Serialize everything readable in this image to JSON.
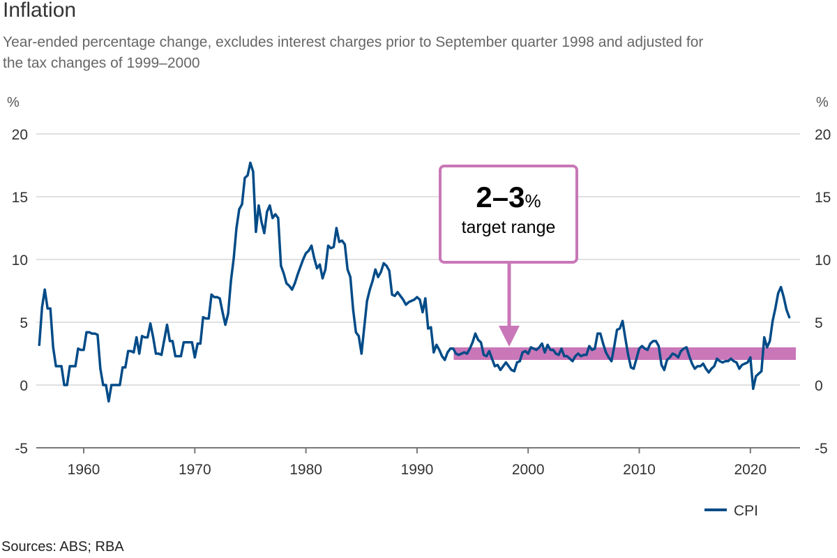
{
  "header": {
    "title": "Inflation",
    "subtitle": "Year-ended percentage change, excludes interest charges prior to September quarter 1998 and adjusted for the tax changes of 1999–2000"
  },
  "axis_units": {
    "left": "%",
    "right": "%"
  },
  "annotation": {
    "value": "2–3",
    "value_unit": "%",
    "label": "target range",
    "color": "#c977b8"
  },
  "sources": "Sources: ABS; RBA",
  "chart_data": {
    "type": "line",
    "title": "Inflation",
    "subtitle": "Year-ended percentage change, excludes interest charges prior to September quarter 1998 and adjusted for the tax changes of 1999–2000",
    "xlabel": "",
    "ylabel": "%",
    "xlim": [
      1955.6,
      2024.4
    ],
    "ylim": [
      -5,
      20
    ],
    "yticks": [
      -5,
      0,
      5,
      10,
      15,
      20
    ],
    "xticks": [
      1960,
      1970,
      1980,
      1990,
      2000,
      2010,
      2020
    ],
    "ytick_labels": [
      "-5",
      "0",
      "5",
      "10",
      "15",
      "20"
    ],
    "xtick_labels": [
      "1960",
      "1970",
      "1980",
      "1990",
      "2000",
      "2010",
      "2020"
    ],
    "grid": true,
    "legend": {
      "position": "bottom-right",
      "entries": [
        "CPI"
      ]
    },
    "target_band": {
      "from_year": 1993.3,
      "to_year": 2024.4,
      "low": 2,
      "high": 3,
      "label": "2–3% target range",
      "color": "#c977b8"
    },
    "series": [
      {
        "name": "CPI",
        "color": "#004b87",
        "points": [
          [
            1956.0,
            3.2
          ],
          [
            1956.25,
            6.2
          ],
          [
            1956.5,
            7.6
          ],
          [
            1956.75,
            6.1
          ],
          [
            1957.0,
            6.1
          ],
          [
            1957.25,
            3.0
          ],
          [
            1957.5,
            1.5
          ],
          [
            1957.75,
            1.5
          ],
          [
            1958.0,
            1.5
          ],
          [
            1958.25,
            0.0
          ],
          [
            1958.5,
            0.0
          ],
          [
            1958.75,
            1.5
          ],
          [
            1959.0,
            1.5
          ],
          [
            1959.25,
            1.5
          ],
          [
            1959.5,
            2.9
          ],
          [
            1959.75,
            2.8
          ],
          [
            1960.0,
            2.8
          ],
          [
            1960.25,
            4.2
          ],
          [
            1960.5,
            4.2
          ],
          [
            1960.75,
            4.1
          ],
          [
            1961.0,
            4.1
          ],
          [
            1961.25,
            4.0
          ],
          [
            1961.5,
            1.3
          ],
          [
            1961.75,
            0.0
          ],
          [
            1962.0,
            0.0
          ],
          [
            1962.25,
            -1.3
          ],
          [
            1962.5,
            0.0
          ],
          [
            1962.75,
            0.0
          ],
          [
            1963.0,
            0.0
          ],
          [
            1963.25,
            0.0
          ],
          [
            1963.5,
            1.4
          ],
          [
            1963.75,
            1.4
          ],
          [
            1964.0,
            2.7
          ],
          [
            1964.25,
            2.7
          ],
          [
            1964.5,
            2.6
          ],
          [
            1964.75,
            3.8
          ],
          [
            1965.0,
            2.5
          ],
          [
            1965.25,
            3.9
          ],
          [
            1965.5,
            3.8
          ],
          [
            1965.75,
            3.8
          ],
          [
            1966.0,
            4.9
          ],
          [
            1966.25,
            3.8
          ],
          [
            1966.5,
            2.5
          ],
          [
            1966.75,
            2.5
          ],
          [
            1967.0,
            2.4
          ],
          [
            1967.25,
            3.6
          ],
          [
            1967.5,
            4.8
          ],
          [
            1967.75,
            3.5
          ],
          [
            1968.0,
            3.5
          ],
          [
            1968.25,
            2.3
          ],
          [
            1968.5,
            2.3
          ],
          [
            1968.75,
            2.3
          ],
          [
            1969.0,
            3.4
          ],
          [
            1969.25,
            3.4
          ],
          [
            1969.5,
            3.4
          ],
          [
            1969.75,
            3.4
          ],
          [
            1970.0,
            2.2
          ],
          [
            1970.25,
            3.3
          ],
          [
            1970.5,
            3.3
          ],
          [
            1970.75,
            5.4
          ],
          [
            1971.0,
            5.3
          ],
          [
            1971.25,
            5.3
          ],
          [
            1971.5,
            7.2
          ],
          [
            1971.75,
            7.0
          ],
          [
            1972.0,
            7.0
          ],
          [
            1972.25,
            6.9
          ],
          [
            1972.5,
            5.8
          ],
          [
            1972.75,
            4.8
          ],
          [
            1973.0,
            5.7
          ],
          [
            1973.25,
            8.3
          ],
          [
            1973.5,
            10.1
          ],
          [
            1973.75,
            12.5
          ],
          [
            1974.0,
            14.0
          ],
          [
            1974.25,
            14.4
          ],
          [
            1974.5,
            16.5
          ],
          [
            1974.75,
            16.7
          ],
          [
            1975.0,
            17.7
          ],
          [
            1975.25,
            17.0
          ],
          [
            1975.5,
            12.2
          ],
          [
            1975.75,
            14.3
          ],
          [
            1976.0,
            13.0
          ],
          [
            1976.25,
            12.1
          ],
          [
            1976.5,
            13.8
          ],
          [
            1976.75,
            14.3
          ],
          [
            1977.0,
            13.3
          ],
          [
            1977.25,
            13.6
          ],
          [
            1977.5,
            13.3
          ],
          [
            1977.75,
            9.5
          ],
          [
            1978.0,
            8.9
          ],
          [
            1978.25,
            8.1
          ],
          [
            1978.5,
            7.9
          ],
          [
            1978.75,
            7.6
          ],
          [
            1979.0,
            8.1
          ],
          [
            1979.25,
            8.8
          ],
          [
            1979.5,
            9.4
          ],
          [
            1979.75,
            10.0
          ],
          [
            1980.0,
            10.5
          ],
          [
            1980.25,
            10.7
          ],
          [
            1980.5,
            11.1
          ],
          [
            1980.75,
            10.1
          ],
          [
            1981.0,
            9.3
          ],
          [
            1981.25,
            9.6
          ],
          [
            1981.5,
            8.5
          ],
          [
            1981.75,
            9.2
          ],
          [
            1982.0,
            11.1
          ],
          [
            1982.25,
            10.9
          ],
          [
            1982.5,
            11.0
          ],
          [
            1982.75,
            12.5
          ],
          [
            1983.0,
            11.4
          ],
          [
            1983.25,
            11.5
          ],
          [
            1983.5,
            11.2
          ],
          [
            1983.75,
            9.2
          ],
          [
            1984.0,
            8.6
          ],
          [
            1984.25,
            6.0
          ],
          [
            1984.5,
            4.2
          ],
          [
            1984.75,
            3.9
          ],
          [
            1985.0,
            2.5
          ],
          [
            1985.25,
            4.6
          ],
          [
            1985.5,
            6.7
          ],
          [
            1985.75,
            7.6
          ],
          [
            1986.0,
            8.3
          ],
          [
            1986.25,
            9.2
          ],
          [
            1986.5,
            8.6
          ],
          [
            1986.75,
            9.0
          ],
          [
            1987.0,
            9.7
          ],
          [
            1987.25,
            9.5
          ],
          [
            1987.5,
            9.1
          ],
          [
            1987.75,
            7.2
          ],
          [
            1988.0,
            7.1
          ],
          [
            1988.25,
            7.4
          ],
          [
            1988.5,
            7.1
          ],
          [
            1988.75,
            6.8
          ],
          [
            1989.0,
            6.4
          ],
          [
            1989.25,
            6.6
          ],
          [
            1989.5,
            6.7
          ],
          [
            1989.75,
            6.8
          ],
          [
            1990.0,
            7.0
          ],
          [
            1990.25,
            6.8
          ],
          [
            1990.5,
            5.8
          ],
          [
            1990.75,
            6.9
          ],
          [
            1991.0,
            4.5
          ],
          [
            1991.25,
            4.6
          ],
          [
            1991.5,
            2.6
          ],
          [
            1991.75,
            3.2
          ],
          [
            1992.0,
            2.8
          ],
          [
            1992.25,
            2.3
          ],
          [
            1992.5,
            2.0
          ],
          [
            1992.75,
            2.6
          ],
          [
            1993.0,
            2.9
          ],
          [
            1993.25,
            2.9
          ],
          [
            1993.5,
            2.5
          ],
          [
            1993.75,
            2.4
          ],
          [
            1994.0,
            2.5
          ],
          [
            1994.25,
            2.6
          ],
          [
            1994.5,
            2.5
          ],
          [
            1994.75,
            2.9
          ],
          [
            1995.0,
            3.4
          ],
          [
            1995.25,
            4.1
          ],
          [
            1995.5,
            3.6
          ],
          [
            1995.75,
            3.4
          ],
          [
            1996.0,
            2.4
          ],
          [
            1996.25,
            2.3
          ],
          [
            1996.5,
            2.7
          ],
          [
            1996.75,
            2.1
          ],
          [
            1997.0,
            1.5
          ],
          [
            1997.25,
            1.6
          ],
          [
            1997.5,
            1.2
          ],
          [
            1997.75,
            1.5
          ],
          [
            1998.0,
            1.8
          ],
          [
            1998.25,
            1.5
          ],
          [
            1998.5,
            1.2
          ],
          [
            1998.75,
            1.1
          ],
          [
            1999.0,
            1.8
          ],
          [
            1999.25,
            1.9
          ],
          [
            1999.5,
            2.6
          ],
          [
            1999.75,
            2.7
          ],
          [
            2000.0,
            2.5
          ],
          [
            2000.25,
            3.0
          ],
          [
            2000.5,
            2.9
          ],
          [
            2000.75,
            2.8
          ],
          [
            2001.0,
            3.0
          ],
          [
            2001.25,
            3.3
          ],
          [
            2001.5,
            2.6
          ],
          [
            2001.75,
            3.2
          ],
          [
            2002.0,
            2.8
          ],
          [
            2002.25,
            2.8
          ],
          [
            2002.5,
            2.5
          ],
          [
            2002.75,
            2.4
          ],
          [
            2003.0,
            2.9
          ],
          [
            2003.25,
            2.3
          ],
          [
            2003.5,
            2.3
          ],
          [
            2003.75,
            2.1
          ],
          [
            2004.0,
            1.9
          ],
          [
            2004.25,
            2.3
          ],
          [
            2004.5,
            2.5
          ],
          [
            2004.75,
            2.3
          ],
          [
            2005.0,
            2.4
          ],
          [
            2005.25,
            2.4
          ],
          [
            2005.5,
            3.1
          ],
          [
            2005.75,
            2.8
          ],
          [
            2006.0,
            2.9
          ],
          [
            2006.25,
            4.1
          ],
          [
            2006.5,
            4.1
          ],
          [
            2006.75,
            3.3
          ],
          [
            2007.0,
            2.6
          ],
          [
            2007.25,
            2.2
          ],
          [
            2007.5,
            1.9
          ],
          [
            2007.75,
            3.1
          ],
          [
            2008.0,
            4.4
          ],
          [
            2008.25,
            4.5
          ],
          [
            2008.5,
            5.1
          ],
          [
            2008.75,
            3.7
          ],
          [
            2009.0,
            2.4
          ],
          [
            2009.25,
            1.4
          ],
          [
            2009.5,
            1.3
          ],
          [
            2009.75,
            2.1
          ],
          [
            2010.0,
            2.9
          ],
          [
            2010.25,
            3.1
          ],
          [
            2010.5,
            2.9
          ],
          [
            2010.75,
            2.8
          ],
          [
            2011.0,
            3.3
          ],
          [
            2011.25,
            3.5
          ],
          [
            2011.5,
            3.5
          ],
          [
            2011.75,
            3.1
          ],
          [
            2012.0,
            1.6
          ],
          [
            2012.25,
            1.2
          ],
          [
            2012.5,
            2.0
          ],
          [
            2012.75,
            2.2
          ],
          [
            2013.0,
            2.5
          ],
          [
            2013.25,
            2.4
          ],
          [
            2013.5,
            2.2
          ],
          [
            2013.75,
            2.7
          ],
          [
            2014.0,
            2.9
          ],
          [
            2014.25,
            3.0
          ],
          [
            2014.5,
            2.3
          ],
          [
            2014.75,
            1.7
          ],
          [
            2015.0,
            1.3
          ],
          [
            2015.25,
            1.5
          ],
          [
            2015.5,
            1.5
          ],
          [
            2015.75,
            1.7
          ],
          [
            2016.0,
            1.3
          ],
          [
            2016.25,
            1.0
          ],
          [
            2016.5,
            1.3
          ],
          [
            2016.75,
            1.5
          ],
          [
            2017.0,
            2.1
          ],
          [
            2017.25,
            1.9
          ],
          [
            2017.5,
            1.8
          ],
          [
            2017.75,
            1.9
          ],
          [
            2018.0,
            1.9
          ],
          [
            2018.25,
            2.1
          ],
          [
            2018.5,
            1.9
          ],
          [
            2018.75,
            1.8
          ],
          [
            2019.0,
            1.3
          ],
          [
            2019.25,
            1.6
          ],
          [
            2019.5,
            1.7
          ],
          [
            2019.75,
            1.8
          ],
          [
            2020.0,
            2.2
          ],
          [
            2020.25,
            -0.3
          ],
          [
            2020.5,
            0.7
          ],
          [
            2020.75,
            0.9
          ],
          [
            2021.0,
            1.1
          ],
          [
            2021.25,
            3.8
          ],
          [
            2021.5,
            3.0
          ],
          [
            2021.75,
            3.5
          ],
          [
            2022.0,
            5.1
          ],
          [
            2022.25,
            6.1
          ],
          [
            2022.5,
            7.3
          ],
          [
            2022.75,
            7.8
          ],
          [
            2023.0,
            7.0
          ],
          [
            2023.25,
            6.0
          ],
          [
            2023.5,
            5.4
          ]
        ]
      }
    ]
  }
}
